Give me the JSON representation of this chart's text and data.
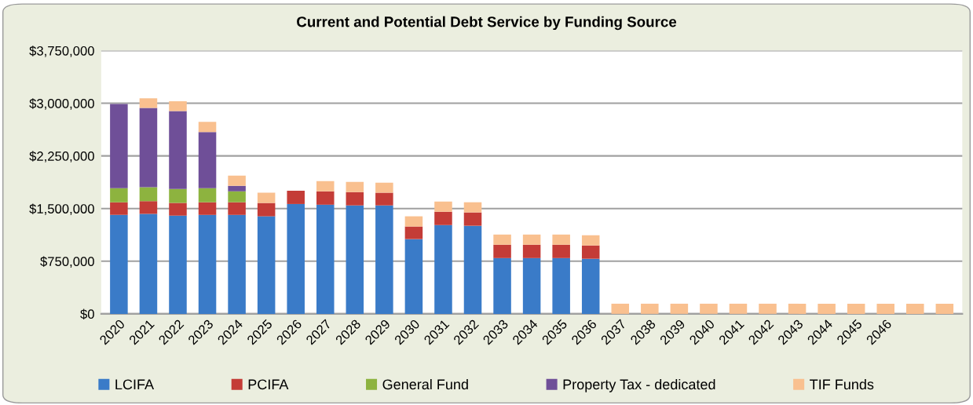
{
  "chart_data": {
    "type": "bar",
    "title": "Current and Potential Debt Service by Funding Source",
    "stacked": true,
    "categories": [
      "2020",
      "2021",
      "2022",
      "2023",
      "2024",
      "2025",
      "2026",
      "2027",
      "2028",
      "2029",
      "2030",
      "2031",
      "2032",
      "2033",
      "2034",
      "2035",
      "2036",
      "2037",
      "2038",
      "2039",
      "2040",
      "2041",
      "2042",
      "2043",
      "2044",
      "2045",
      "2046",
      null,
      null
    ],
    "series": [
      {
        "name": "LCIFA",
        "color": "#3a7bc8",
        "values": [
          1410000,
          1425000,
          1400000,
          1410000,
          1410000,
          1390000,
          1565000,
          1555000,
          1545000,
          1545000,
          1065000,
          1265000,
          1255000,
          795000,
          795000,
          795000,
          785000,
          0,
          0,
          0,
          0,
          0,
          0,
          0,
          0,
          0,
          0,
          0,
          0
        ]
      },
      {
        "name": "PCIFA",
        "color": "#c43c37",
        "values": [
          180000,
          180000,
          180000,
          180000,
          180000,
          190000,
          190000,
          190000,
          190000,
          180000,
          180000,
          190000,
          190000,
          190000,
          190000,
          190000,
          190000,
          0,
          0,
          0,
          0,
          0,
          0,
          0,
          0,
          0,
          0,
          0,
          0
        ]
      },
      {
        "name": "General Fund",
        "color": "#8db33f",
        "values": [
          200000,
          200000,
          200000,
          200000,
          155000,
          0,
          0,
          0,
          0,
          0,
          0,
          0,
          0,
          0,
          0,
          0,
          0,
          0,
          0,
          0,
          0,
          0,
          0,
          0,
          0,
          0,
          0,
          0,
          0
        ]
      },
      {
        "name": "Property Tax - dedicated",
        "color": "#6f4f98",
        "values": [
          1200000,
          1130000,
          1110000,
          800000,
          80000,
          0,
          0,
          0,
          0,
          0,
          0,
          0,
          0,
          0,
          0,
          0,
          0,
          0,
          0,
          0,
          0,
          0,
          0,
          0,
          0,
          0,
          0,
          0,
          0
        ]
      },
      {
        "name": "TIF Funds",
        "color": "#f9c08f",
        "values": [
          0,
          135000,
          140000,
          145000,
          145000,
          145000,
          0,
          145000,
          145000,
          145000,
          145000,
          145000,
          145000,
          145000,
          145000,
          145000,
          145000,
          145000,
          145000,
          145000,
          145000,
          145000,
          145000,
          145000,
          145000,
          145000,
          145000,
          145000,
          145000
        ]
      }
    ],
    "ylim": [
      0,
      3750000
    ],
    "yticks": [
      {
        "value": 0,
        "label": "$0"
      },
      {
        "value": 750000,
        "label": "$750,000"
      },
      {
        "value": 1500000,
        "label": "$1,500,000"
      },
      {
        "value": 2250000,
        "label": "$2,250,000"
      },
      {
        "value": 3000000,
        "label": "$3,000,000"
      },
      {
        "value": 3750000,
        "label": "$3,750,000"
      }
    ],
    "grid": "y",
    "legend": "bottom"
  }
}
